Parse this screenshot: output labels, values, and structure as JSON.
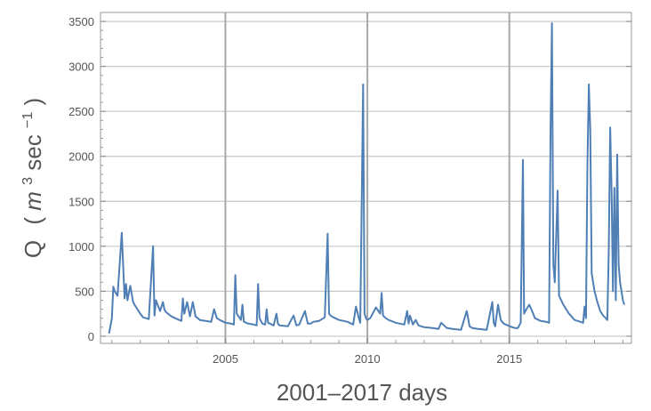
{
  "chart_data": {
    "type": "line",
    "xlabel": "2001–2017 days",
    "ylabel": {
      "prefix": "Q",
      "paren_open": "(",
      "m": "m",
      "sup3": "3",
      "sec": "sec",
      "supneg1": "−1",
      "paren_close": ")"
    },
    "xlim": [
      2000.6,
      2019.3
    ],
    "ylim": [
      -80,
      3600
    ],
    "x_ticks": [
      2005,
      2010,
      2015
    ],
    "y_ticks": [
      0,
      500,
      1000,
      1500,
      2000,
      2500,
      3000,
      3500
    ],
    "grid": true,
    "color": "#4f7fb5",
    "series": [
      {
        "x": [
          2000.9,
          2001.0,
          2001.05,
          2001.1,
          2001.2,
          2001.35,
          2001.45,
          2001.5,
          2001.55,
          2001.65,
          2001.75,
          2001.8,
          2001.9,
          2002.0,
          2002.1,
          2002.3,
          2002.45,
          2002.5,
          2002.55,
          2002.7,
          2002.8,
          2002.85,
          2002.9,
          2003.1,
          2003.3,
          2003.45,
          2003.5,
          2003.55,
          2003.65,
          2003.75,
          2003.85,
          2003.95,
          2004.1,
          2004.3,
          2004.5,
          2004.6,
          2004.7,
          2004.8,
          2005.0,
          2005.2,
          2005.3,
          2005.35,
          2005.4,
          2005.55,
          2005.6,
          2005.65,
          2005.8,
          2006.0,
          2006.1,
          2006.15,
          2006.2,
          2006.3,
          2006.4,
          2006.45,
          2006.5,
          2006.7,
          2006.8,
          2006.85,
          2006.9,
          2007.2,
          2007.4,
          2007.5,
          2007.6,
          2007.8,
          2007.9,
          2008.0,
          2008.1,
          2008.3,
          2008.5,
          2008.6,
          2008.65,
          2008.7,
          2008.8,
          2009.0,
          2009.3,
          2009.5,
          2009.6,
          2009.7,
          2009.75,
          2009.85,
          2009.9,
          2009.95,
          2010.0,
          2010.1,
          2010.3,
          2010.45,
          2010.5,
          2010.55,
          2010.65,
          2010.75,
          2011.0,
          2011.3,
          2011.4,
          2011.45,
          2011.5,
          2011.6,
          2011.7,
          2011.8,
          2012.0,
          2012.3,
          2012.5,
          2012.6,
          2012.7,
          2012.8,
          2013.0,
          2013.3,
          2013.5,
          2013.6,
          2013.7,
          2013.9,
          2014.2,
          2014.4,
          2014.45,
          2014.5,
          2014.6,
          2014.7,
          2014.8,
          2014.95,
          2015.1,
          2015.2,
          2015.3,
          2015.4,
          2015.48,
          2015.52,
          2015.6,
          2015.7,
          2015.8,
          2015.9,
          2016.1,
          2016.3,
          2016.4,
          2016.45,
          2016.5,
          2016.55,
          2016.6,
          2016.7,
          2016.75,
          2016.9,
          2017.1,
          2017.3,
          2017.5,
          2017.6,
          2017.65,
          2017.7,
          2017.75,
          2017.8,
          2017.85,
          2017.9,
          2018.0,
          2018.1,
          2018.2,
          2018.3,
          2018.4,
          2018.45,
          2018.5,
          2018.55,
          2018.6,
          2018.65,
          2018.7,
          2018.75,
          2018.8,
          2018.85,
          2018.9,
          2018.95,
          2019.0,
          2019.05
        ],
        "y": [
          30,
          200,
          550,
          500,
          450,
          1150,
          420,
          580,
          400,
          560,
          380,
          350,
          300,
          250,
          210,
          190,
          1000,
          230,
          400,
          280,
          380,
          300,
          270,
          220,
          190,
          170,
          420,
          250,
          380,
          220,
          380,
          220,
          180,
          170,
          160,
          300,
          200,
          180,
          150,
          140,
          130,
          680,
          250,
          180,
          350,
          160,
          140,
          130,
          120,
          580,
          200,
          140,
          130,
          300,
          150,
          120,
          250,
          140,
          120,
          110,
          230,
          120,
          130,
          280,
          140,
          140,
          160,
          170,
          210,
          1140,
          250,
          230,
          210,
          180,
          160,
          130,
          330,
          200,
          150,
          2800,
          250,
          200,
          180,
          200,
          320,
          250,
          480,
          230,
          200,
          180,
          150,
          130,
          280,
          140,
          230,
          130,
          180,
          120,
          100,
          90,
          80,
          150,
          120,
          90,
          80,
          70,
          280,
          110,
          90,
          80,
          70,
          380,
          150,
          110,
          350,
          180,
          140,
          120,
          100,
          90,
          90,
          150,
          1960,
          250,
          300,
          350,
          280,
          200,
          170,
          160,
          150,
          2250,
          3480,
          800,
          600,
          1620,
          450,
          350,
          250,
          180,
          160,
          150,
          330,
          200,
          1900,
          2800,
          2300,
          700,
          500,
          380,
          280,
          230,
          200,
          180,
          950,
          2320,
          1600,
          500,
          1650,
          400,
          2020,
          800,
          600,
          500,
          400,
          350
        ]
      }
    ]
  }
}
